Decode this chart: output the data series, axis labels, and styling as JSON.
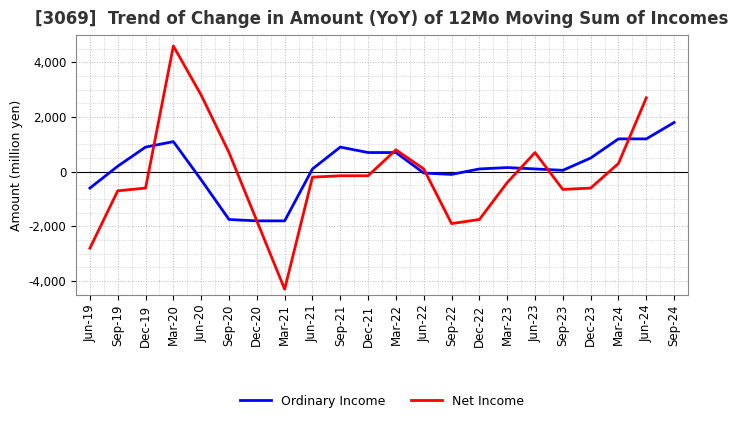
{
  "title": "[3069]  Trend of Change in Amount (YoY) of 12Mo Moving Sum of Incomes",
  "ylabel": "Amount (million yen)",
  "background_color": "#ffffff",
  "plot_background": "#ffffff",
  "grid_color": "#bbbbbb",
  "ylim": [
    -4500,
    5000
  ],
  "yticks": [
    -4000,
    -2000,
    0,
    2000,
    4000
  ],
  "x_labels": [
    "Jun-19",
    "Sep-19",
    "Dec-19",
    "Mar-20",
    "Jun-20",
    "Sep-20",
    "Dec-20",
    "Mar-21",
    "Jun-21",
    "Sep-21",
    "Dec-21",
    "Mar-22",
    "Jun-22",
    "Sep-22",
    "Dec-22",
    "Mar-23",
    "Jun-23",
    "Sep-23",
    "Dec-23",
    "Mar-24",
    "Jun-24",
    "Sep-24"
  ],
  "ordinary_income": [
    -600,
    200,
    900,
    1100,
    -300,
    -1750,
    -1800,
    -1800,
    100,
    900,
    700,
    700,
    -50,
    -100,
    100,
    150,
    100,
    50,
    500,
    1200,
    1200,
    1800
  ],
  "net_income": [
    -2800,
    -700,
    -600,
    4600,
    2800,
    700,
    -1800,
    -4300,
    -200,
    -150,
    -150,
    800,
    100,
    -1900,
    -1750,
    -400,
    700,
    -650,
    -600,
    300,
    2700,
    null
  ],
  "ordinary_color": "#0000ff",
  "net_color": "#ff0000",
  "line_width": 2.0,
  "legend_labels": [
    "Ordinary Income",
    "Net Income"
  ],
  "title_fontsize": 12,
  "axis_fontsize": 9,
  "tick_fontsize": 8.5
}
